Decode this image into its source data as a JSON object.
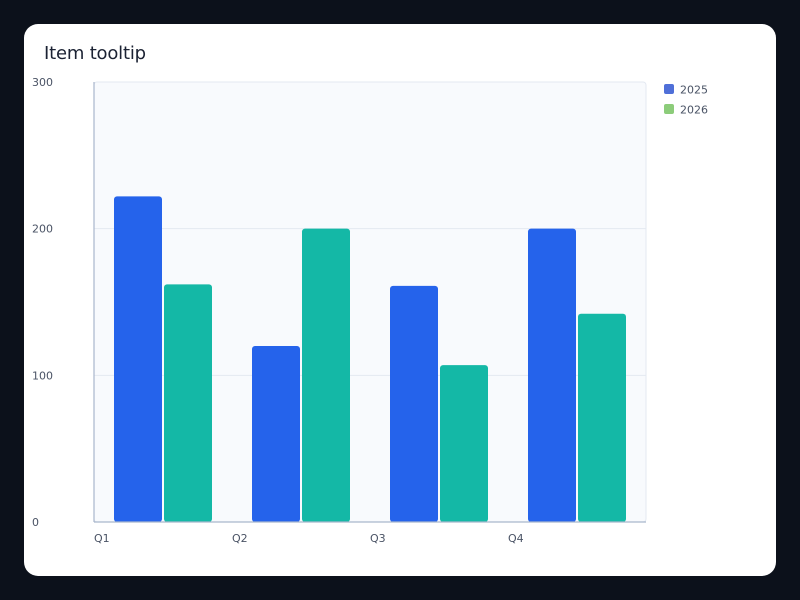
{
  "card": {
    "title": "Item tooltip"
  },
  "colors": {
    "background": "#0c111b",
    "card": "#ffffff",
    "plot_area": "#f8fafd",
    "series_2025": "#2563eb",
    "series_2026": "#14b8a6",
    "legend_2025": "#4f6fd8",
    "legend_2026": "#8ccc7a"
  },
  "chart_data": {
    "type": "bar",
    "title": "Item tooltip",
    "categories": [
      "Q1",
      "Q2",
      "Q3",
      "Q4"
    ],
    "series": [
      {
        "name": "2025",
        "values": [
          222,
          120,
          161,
          200
        ]
      },
      {
        "name": "2026",
        "values": [
          162,
          200,
          107,
          142
        ]
      }
    ],
    "y_ticks": [
      "0",
      "100",
      "200",
      "300"
    ],
    "ylim": [
      0,
      300
    ],
    "grid": true,
    "legend_position": "right"
  }
}
